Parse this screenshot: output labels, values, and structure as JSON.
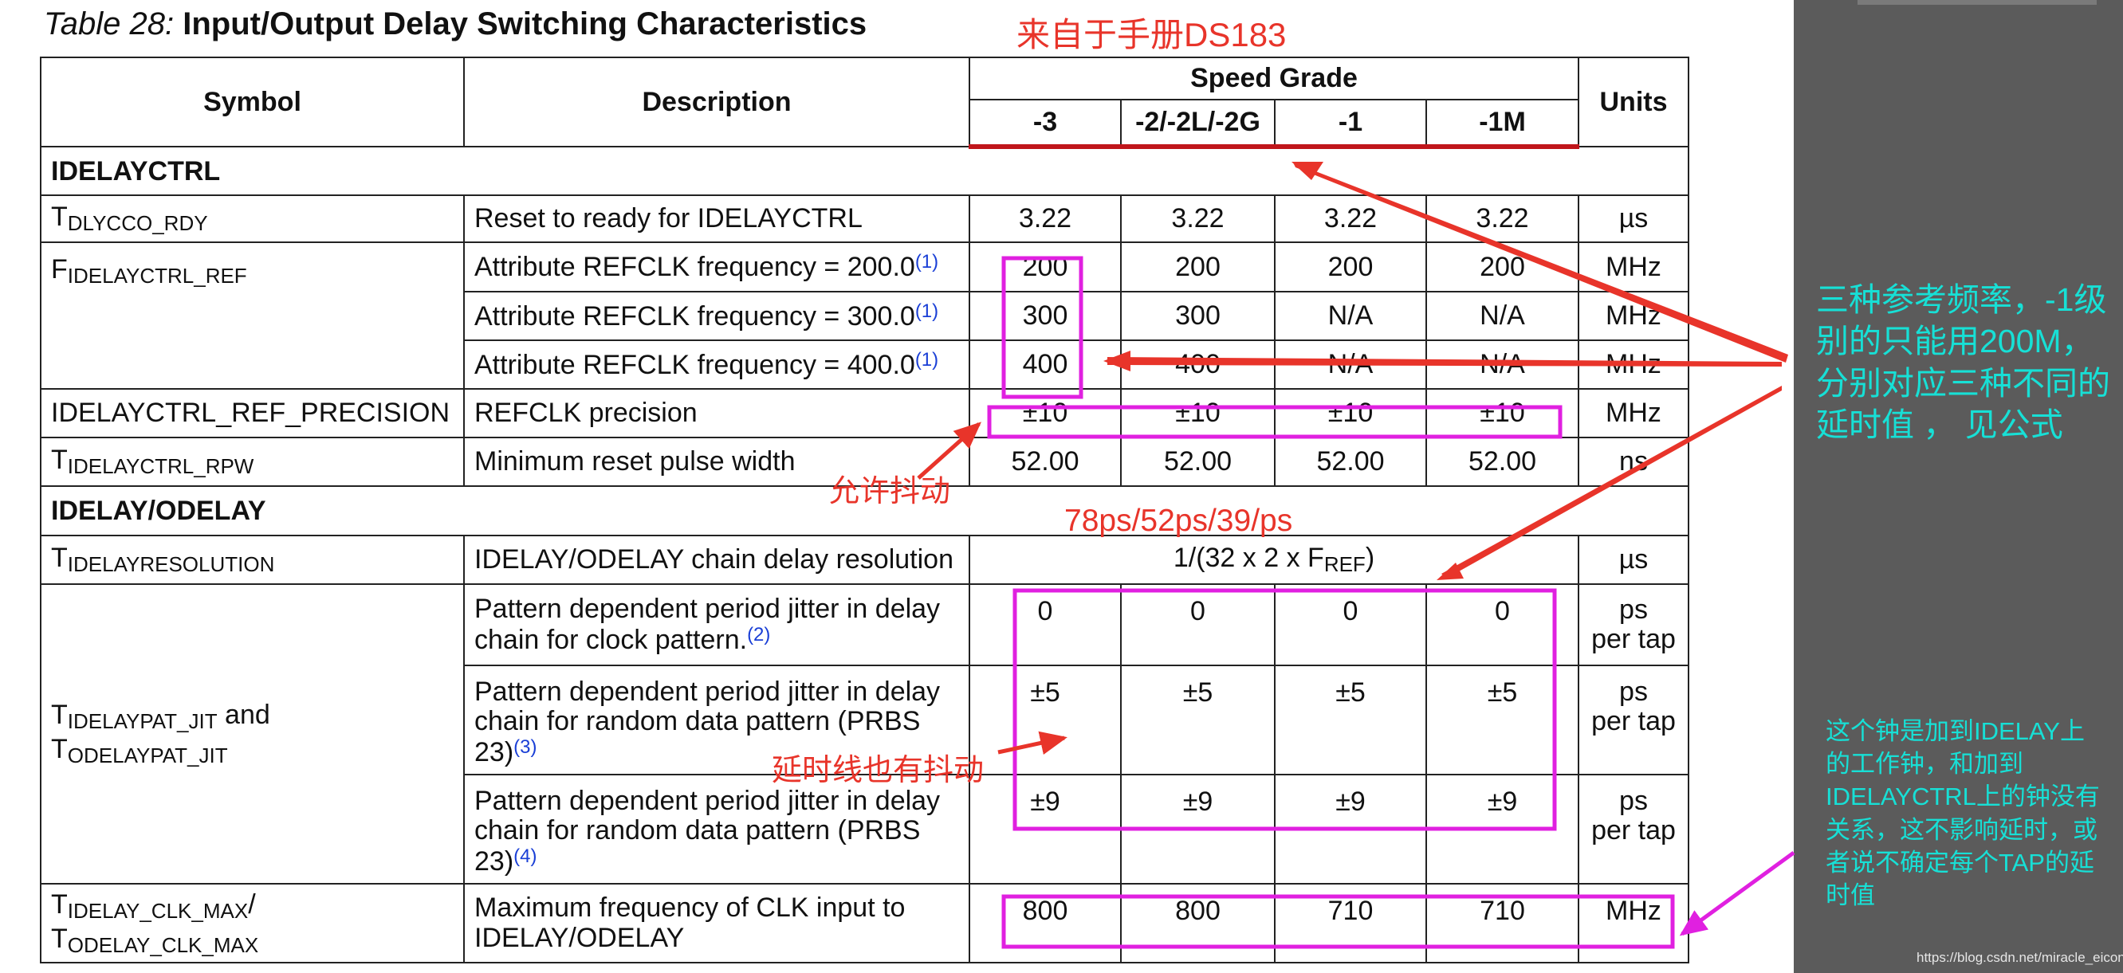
{
  "title": {
    "table_no": "Table  28:",
    "text": "Input/Output Delay Switching Characteristics"
  },
  "annotations": {
    "source_note": "来自于手册DS183",
    "freq_note": "三种参考频率，-1级别的只能用200M，分别对应三种不同的延时值 ， 见公式",
    "jitter_note": "允许抖动",
    "delay_values_note": "78ps/52ps/39/ps",
    "line_jitter_note": "延时线也有抖动",
    "clk_note": "这个钟是加到IDELAY上的工作钟，和加到IDELAYCTRL上的钟没有关系，这不影响延时，或者说不确定每个TAP的延时值"
  },
  "header": {
    "symbol": "Symbol",
    "description": "Description",
    "speed_grade": "Speed Grade",
    "grades": [
      "-3",
      "-2/-2L/-2G",
      "-1",
      "-1M"
    ],
    "units": "Units"
  },
  "sections": {
    "idelayctrl": "IDELAYCTRL",
    "idelay_odelay": "IDELAY/ODELAY"
  },
  "rows": {
    "rdy": {
      "sym_main": "T",
      "sym_sub": "DLYCCO_RDY",
      "desc": "Reset to ready for IDELAYCTRL",
      "v": [
        "3.22",
        "3.22",
        "3.22",
        "3.22"
      ],
      "unit": "µs"
    },
    "ref": {
      "sym_main": "F",
      "sym_sub": "IDELAYCTRL_REF",
      "r1": {
        "desc": "Attribute REFCLK frequency = 200.0",
        "fn": "(1)",
        "v": [
          "200",
          "200",
          "200",
          "200"
        ],
        "unit": "MHz"
      },
      "r2": {
        "desc": "Attribute REFCLK frequency = 300.0",
        "fn": "(1)",
        "v": [
          "300",
          "300",
          "N/A",
          "N/A"
        ],
        "unit": "MHz"
      },
      "r3": {
        "desc": "Attribute REFCLK frequency = 400.0",
        "fn": "(1)",
        "v": [
          "400",
          "400",
          "N/A",
          "N/A"
        ],
        "unit": "MHz"
      }
    },
    "precision": {
      "sym": "IDELAYCTRL_REF_PRECISION",
      "desc": "REFCLK precision",
      "v": [
        "±10",
        "±10",
        "±10",
        "±10"
      ],
      "unit": "MHz"
    },
    "rpw": {
      "sym_main": "T",
      "sym_sub": "IDELAYCTRL_RPW",
      "desc": "Minimum reset pulse width",
      "v": [
        "52.00",
        "52.00",
        "52.00",
        "52.00"
      ],
      "unit": "ns"
    },
    "resolution": {
      "sym_main": "T",
      "sym_sub": "IDELAYRESOLUTION",
      "desc": "IDELAY/ODELAY chain delay resolution",
      "formula_main": "1/(32 x 2 x F",
      "formula_sub": "REF",
      "formula_end": ")",
      "unit": "µs"
    },
    "pat_jit": {
      "sym1_main": "T",
      "sym1_sub": "IDELAYPAT_JIT",
      "sym_and": " and",
      "sym2_main": "T",
      "sym2_sub": "ODELAYPAT_JIT",
      "r1": {
        "desc": "Pattern dependent period jitter in delay chain for clock pattern.",
        "fn": "(2)",
        "v": [
          "0",
          "0",
          "0",
          "0"
        ],
        "unit_a": "ps",
        "unit_b": "per tap"
      },
      "r2": {
        "desc": "Pattern dependent period jitter in delay chain for random data pattern (PRBS 23)",
        "fn": "(3)",
        "v": [
          "±5",
          "±5",
          "±5",
          "±5"
        ],
        "unit_a": "ps",
        "unit_b": "per tap"
      },
      "r3": {
        "desc": "Pattern dependent period jitter in delay chain for random data pattern (PRBS 23)",
        "fn": "(4)",
        "v": [
          "±9",
          "±9",
          "±9",
          "±9"
        ],
        "unit_a": "ps",
        "unit_b": "per tap"
      }
    },
    "clk_max": {
      "sym1_main": "T",
      "sym1_sub": "IDELAY_CLK_MAX",
      "sym_slash": "/",
      "sym2_main": "T",
      "sym2_sub": "ODELAY_CLK_MAX",
      "desc": "Maximum frequency of CLK input to IDELAY/ODELAY",
      "v": [
        "800",
        "800",
        "710",
        "710"
      ],
      "unit": "MHz"
    }
  },
  "watermark": "https://blog.csdn.net/miracle_eicont",
  "colors": {
    "highlight_box": "#e020e0",
    "arrow_red": "#e8342a",
    "arrow_magenta": "#e020e0",
    "note_cyan": "#17e0d6",
    "header_rule": "#c0161b"
  }
}
